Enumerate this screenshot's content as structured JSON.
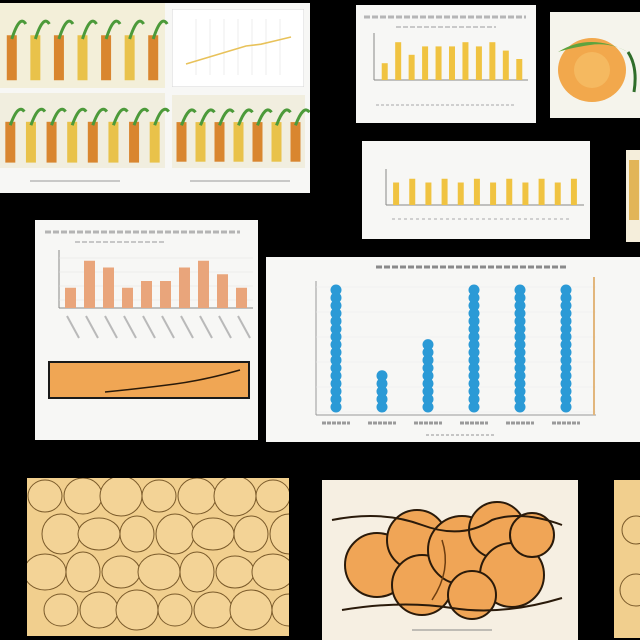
{
  "colors": {
    "background": "#000000",
    "panel": "#f7f7f5",
    "bar_yellow": "#f0c341",
    "bar_salmon": "#e9a57b",
    "dot_blue": "#2b9ad6",
    "cell_fill": "#ecc587",
    "blob_orange": "#f0a556",
    "plant_green": "#4c9a3a"
  },
  "icons": {
    "microscope_cells": "cell-mosaic",
    "plant_illustration": "plant-stalks",
    "tissue_blob": "orange-tissue"
  },
  "chart_data": [
    {
      "type": "line",
      "series": [
        {
          "values": [
            40,
            45,
            50,
            55,
            60,
            62,
            66,
            70
          ]
        }
      ]
    },
    {
      "type": "bar",
      "series": [
        {
          "values": [
            4,
            9,
            6,
            8,
            8,
            8,
            9,
            8,
            9,
            7,
            5
          ]
        }
      ]
    },
    {
      "type": "bar",
      "series": [
        {
          "values": [
            6,
            7,
            6,
            7,
            6,
            7,
            6,
            7,
            6,
            7,
            6,
            7
          ]
        }
      ]
    },
    {
      "type": "bar",
      "series": [
        {
          "values": [
            3,
            7,
            6,
            3,
            4,
            4,
            6,
            7,
            5,
            3
          ]
        }
      ]
    },
    {
      "type": "scatter",
      "series": [
        {
          "values": [
            16,
            5,
            9,
            16,
            16,
            16
          ]
        }
      ]
    }
  ]
}
